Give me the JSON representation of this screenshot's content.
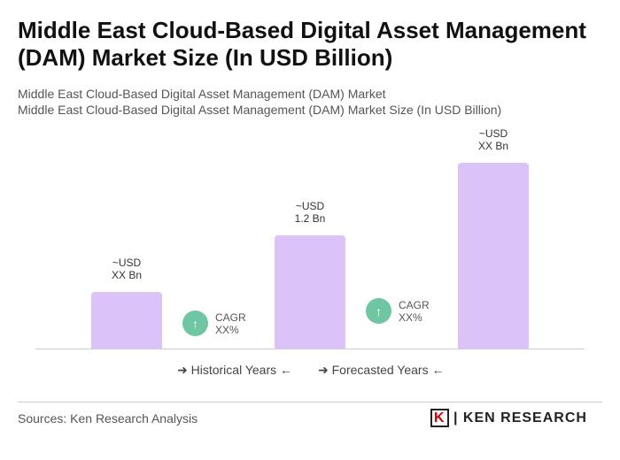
{
  "title": "Middle East Cloud-Based Digital Asset Management (DAM) Market Size (In USD Billion)",
  "subtitle1": "Middle East Cloud-Based Digital Asset Management (DAM) Market",
  "subtitle2": "Middle East Cloud-Based Digital Asset Management (DAM) Market Size (In USD Billion)",
  "chart_data": {
    "type": "bar",
    "categories": [
      "",
      "",
      ""
    ],
    "values": [
      0.6,
      1.2,
      1.97
    ],
    "labels": [
      [
        "~USD",
        "XX Bn"
      ],
      [
        "~USD",
        "1.2 Bn"
      ],
      [
        "~USD",
        "XX Bn"
      ]
    ],
    "bar_color": "#dcc3f7",
    "cagr": [
      {
        "label": "CAGR",
        "value": "XX%"
      },
      {
        "label": "CAGR",
        "value": "XX%"
      }
    ],
    "cagr_color": "#6fc6a3",
    "legend": [
      "Historical Years",
      "Forecasted Years"
    ],
    "legend_placement": "bottom",
    "grid": false
  },
  "sources": "Sources: Ken Research Analysis",
  "logo": "KEN RESEARCH"
}
